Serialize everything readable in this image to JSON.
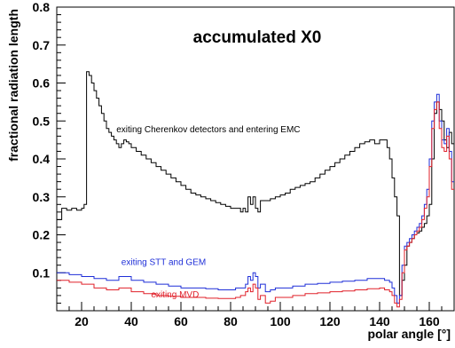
{
  "chart_data": {
    "type": "line",
    "title": "accumulated X0",
    "xlabel": "polar angle [°]",
    "ylabel": "fractional radiation length",
    "xlim": [
      10,
      170
    ],
    "ylim": [
      0,
      0.8
    ],
    "x_ticks": [
      20,
      40,
      60,
      80,
      100,
      120,
      140,
      160
    ],
    "y_ticks": [
      0.1,
      0.2,
      0.3,
      0.4,
      0.5,
      0.6,
      0.7,
      0.8
    ],
    "grid": false,
    "step": true,
    "series": [
      {
        "name": "exiting Cherenkov detectors and entering EMC",
        "color": "#000000",
        "x": [
          10,
          12,
          14,
          16,
          18,
          20,
          21,
          22,
          23,
          24,
          25,
          26,
          27,
          28,
          29,
          30,
          31,
          32,
          33,
          34,
          35,
          36,
          37,
          38,
          39,
          40,
          42,
          44,
          46,
          48,
          50,
          52,
          54,
          56,
          58,
          60,
          62,
          64,
          66,
          68,
          70,
          72,
          74,
          76,
          78,
          80,
          82,
          84,
          85,
          86,
          87,
          88,
          89,
          90,
          91,
          92,
          94,
          96,
          98,
          100,
          102,
          104,
          106,
          108,
          110,
          112,
          114,
          116,
          118,
          120,
          122,
          124,
          126,
          128,
          130,
          132,
          134,
          136,
          138,
          140,
          142,
          143,
          144,
          145,
          146,
          147,
          148,
          149,
          150,
          151,
          152,
          153,
          154,
          155,
          156,
          157,
          158,
          159,
          160,
          161,
          162,
          163,
          164,
          165,
          166,
          167,
          168,
          169
        ],
        "values": [
          0.24,
          0.27,
          0.265,
          0.27,
          0.265,
          0.27,
          0.28,
          0.63,
          0.62,
          0.6,
          0.58,
          0.56,
          0.54,
          0.52,
          0.5,
          0.48,
          0.47,
          0.46,
          0.45,
          0.44,
          0.43,
          0.44,
          0.45,
          0.445,
          0.44,
          0.43,
          0.42,
          0.41,
          0.4,
          0.39,
          0.38,
          0.37,
          0.36,
          0.35,
          0.34,
          0.33,
          0.32,
          0.31,
          0.305,
          0.3,
          0.295,
          0.29,
          0.285,
          0.28,
          0.275,
          0.27,
          0.27,
          0.26,
          0.27,
          0.26,
          0.3,
          0.28,
          0.3,
          0.27,
          0.26,
          0.29,
          0.29,
          0.295,
          0.3,
          0.305,
          0.31,
          0.32,
          0.325,
          0.33,
          0.335,
          0.34,
          0.35,
          0.36,
          0.37,
          0.38,
          0.39,
          0.4,
          0.41,
          0.42,
          0.43,
          0.44,
          0.445,
          0.45,
          0.44,
          0.45,
          0.45,
          0.43,
          0.4,
          0.35,
          0.3,
          0.25,
          0.04,
          0.08,
          0.12,
          0.17,
          0.18,
          0.19,
          0.2,
          0.205,
          0.21,
          0.22,
          0.23,
          0.25,
          0.28,
          0.4,
          0.52,
          0.55,
          0.53,
          0.5,
          0.45,
          0.43,
          0.47,
          0.44
        ]
      },
      {
        "name": "exiting STT and GEM",
        "color": "#1f2fd8",
        "x": [
          10,
          15,
          20,
          25,
          30,
          35,
          40,
          45,
          50,
          55,
          60,
          65,
          70,
          75,
          80,
          82,
          84,
          85,
          86,
          87,
          88,
          89,
          90,
          91,
          92,
          94,
          96,
          98,
          100,
          105,
          110,
          115,
          120,
          125,
          130,
          135,
          140,
          142,
          144,
          145,
          146,
          147,
          148,
          149,
          150,
          151,
          152,
          153,
          154,
          155,
          156,
          157,
          158,
          159,
          160,
          161,
          162,
          163,
          164,
          165,
          166,
          167,
          168,
          169
        ],
        "values": [
          0.1,
          0.095,
          0.09,
          0.085,
          0.08,
          0.09,
          0.08,
          0.075,
          0.07,
          0.065,
          0.06,
          0.06,
          0.058,
          0.055,
          0.055,
          0.06,
          0.06,
          0.06,
          0.07,
          0.09,
          0.08,
          0.1,
          0.09,
          0.06,
          0.07,
          0.05,
          0.055,
          0.06,
          0.06,
          0.065,
          0.07,
          0.072,
          0.075,
          0.078,
          0.08,
          0.085,
          0.085,
          0.08,
          0.075,
          0.06,
          0.04,
          0.02,
          0.04,
          0.12,
          0.17,
          0.18,
          0.19,
          0.2,
          0.21,
          0.22,
          0.23,
          0.25,
          0.28,
          0.32,
          0.4,
          0.5,
          0.55,
          0.57,
          0.5,
          0.45,
          0.44,
          0.48,
          0.42,
          0.34
        ]
      },
      {
        "name": "exiting MVD",
        "color": "#e0202a",
        "x": [
          10,
          15,
          20,
          25,
          30,
          35,
          40,
          45,
          50,
          55,
          60,
          65,
          70,
          75,
          80,
          82,
          84,
          85,
          86,
          87,
          88,
          89,
          90,
          91,
          92,
          94,
          96,
          98,
          100,
          105,
          110,
          115,
          120,
          125,
          130,
          135,
          140,
          142,
          144,
          145,
          146,
          147,
          148,
          149,
          150,
          151,
          152,
          153,
          154,
          155,
          156,
          157,
          158,
          159,
          160,
          161,
          162,
          163,
          164,
          165,
          166,
          167,
          168,
          169
        ],
        "values": [
          0.08,
          0.075,
          0.07,
          0.06,
          0.055,
          0.06,
          0.05,
          0.045,
          0.04,
          0.038,
          0.035,
          0.035,
          0.033,
          0.032,
          0.032,
          0.035,
          0.04,
          0.04,
          0.05,
          0.06,
          0.05,
          0.07,
          0.06,
          0.03,
          0.04,
          0.02,
          0.025,
          0.035,
          0.035,
          0.04,
          0.045,
          0.047,
          0.05,
          0.052,
          0.055,
          0.058,
          0.06,
          0.055,
          0.05,
          0.04,
          0.02,
          0.01,
          0.03,
          0.1,
          0.16,
          0.17,
          0.18,
          0.19,
          0.2,
          0.21,
          0.22,
          0.24,
          0.27,
          0.3,
          0.38,
          0.48,
          0.53,
          0.55,
          0.48,
          0.43,
          0.42,
          0.46,
          0.4,
          0.32
        ]
      }
    ],
    "annotations": [
      {
        "text": "exiting Cherenkov detectors and entering EMC",
        "x": 34,
        "y": 0.47,
        "color": "#000000"
      },
      {
        "text": "exiting STT and GEM",
        "x": 36,
        "y": 0.12,
        "color": "#1f2fd8"
      },
      {
        "text": "exiting MVD",
        "x": 48,
        "y": 0.035,
        "color": "#e0202a"
      }
    ]
  }
}
